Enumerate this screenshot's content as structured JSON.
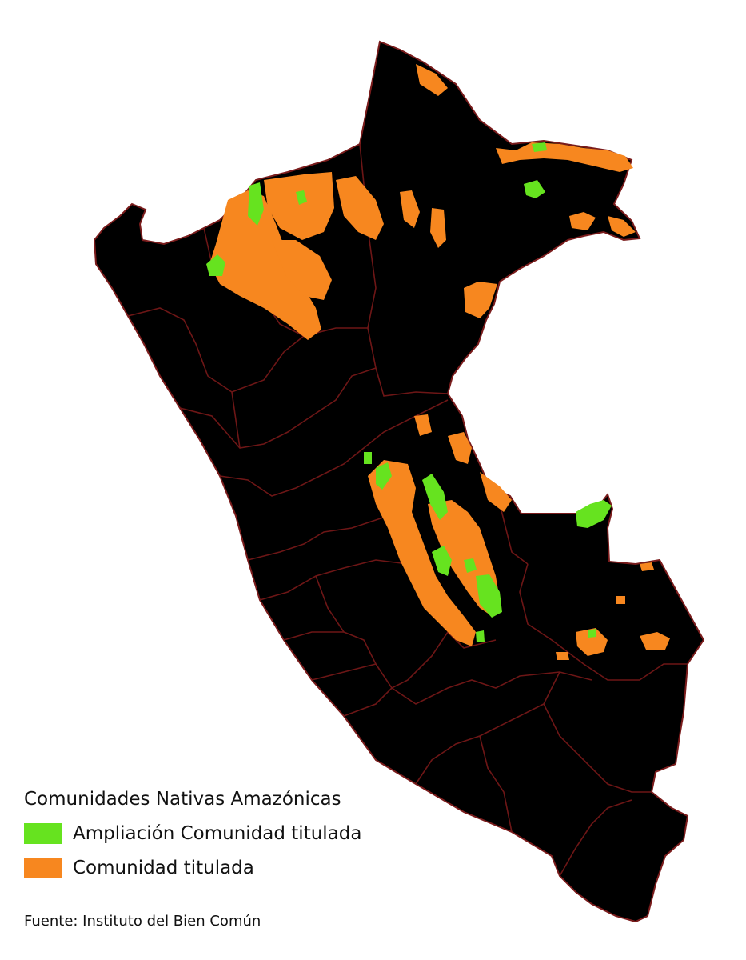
{
  "colors": {
    "country_fill": "#000000",
    "boundary": "#7a1c1c",
    "extension": "#66e31f",
    "titled": "#f7871f",
    "background": "#ffffff"
  },
  "legend": {
    "title": "Comunidades Nativas Amazónicas",
    "items": [
      {
        "label": "Ampliación Comunidad titulada",
        "color": "#66e31f"
      },
      {
        "label": "Comunidad titulada",
        "color": "#f7871f"
      }
    ]
  },
  "source": "Fuente: Instituto del Bien Común"
}
